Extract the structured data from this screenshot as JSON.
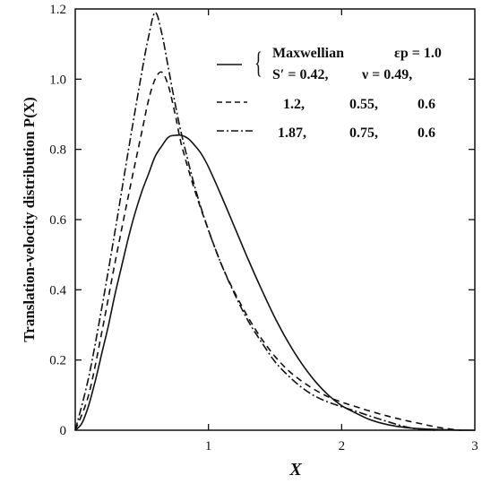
{
  "chart_data": {
    "type": "line",
    "title": "",
    "xlabel": "X",
    "ylabel": "Translation-velocity distribution  P(X)",
    "xlim": [
      0,
      3
    ],
    "ylim": [
      0,
      1.2
    ],
    "x_ticks": [
      "1",
      "2",
      "3"
    ],
    "y_ticks": [
      "0",
      "0.2",
      "0.4",
      "0.6",
      "0.8",
      "1.0",
      "1.2"
    ],
    "grid": false,
    "legend_position": "top-right",
    "legend": {
      "maxwellian": "Maxwellian",
      "epsilon_p": "εp = 1.0",
      "row1": [
        "S′ = 0.42,",
        "ν = 0.49,",
        ""
      ],
      "row2": [
        "1.2,",
        "0.55,",
        "0.6"
      ],
      "row3": [
        "1.87,",
        "0.75,",
        "0.6"
      ]
    },
    "series": [
      {
        "style": "solid",
        "points": [
          [
            0,
            0
          ],
          [
            0.05,
            0.02
          ],
          [
            0.1,
            0.07
          ],
          [
            0.15,
            0.14
          ],
          [
            0.2,
            0.22
          ],
          [
            0.25,
            0.3
          ],
          [
            0.3,
            0.39
          ],
          [
            0.35,
            0.47
          ],
          [
            0.4,
            0.55
          ],
          [
            0.45,
            0.62
          ],
          [
            0.5,
            0.68
          ],
          [
            0.55,
            0.73
          ],
          [
            0.6,
            0.78
          ],
          [
            0.65,
            0.81
          ],
          [
            0.7,
            0.835
          ],
          [
            0.75,
            0.84
          ],
          [
            0.8,
            0.84
          ],
          [
            0.85,
            0.83
          ],
          [
            0.9,
            0.81
          ],
          [
            0.95,
            0.785
          ],
          [
            1.0,
            0.75
          ],
          [
            1.1,
            0.665
          ],
          [
            1.2,
            0.575
          ],
          [
            1.3,
            0.485
          ],
          [
            1.4,
            0.4
          ],
          [
            1.5,
            0.32
          ],
          [
            1.6,
            0.25
          ],
          [
            1.7,
            0.19
          ],
          [
            1.8,
            0.14
          ],
          [
            1.9,
            0.1
          ],
          [
            2.0,
            0.07
          ],
          [
            2.1,
            0.05
          ],
          [
            2.2,
            0.032
          ],
          [
            2.3,
            0.02
          ],
          [
            2.4,
            0.012
          ],
          [
            2.5,
            0.007
          ],
          [
            2.6,
            0.004
          ],
          [
            2.8,
            0.001
          ],
          [
            3.0,
            0.0
          ]
        ]
      },
      {
        "style": "dashed",
        "points": [
          [
            0,
            0
          ],
          [
            0.1,
            0.1
          ],
          [
            0.2,
            0.28
          ],
          [
            0.3,
            0.48
          ],
          [
            0.4,
            0.67
          ],
          [
            0.5,
            0.85
          ],
          [
            0.55,
            0.94
          ],
          [
            0.6,
            1.0
          ],
          [
            0.65,
            1.02
          ],
          [
            0.7,
            0.98
          ],
          [
            0.75,
            0.9
          ],
          [
            0.8,
            0.81
          ],
          [
            0.9,
            0.68
          ],
          [
            1.0,
            0.57
          ],
          [
            1.1,
            0.47
          ],
          [
            1.2,
            0.39
          ],
          [
            1.3,
            0.32
          ],
          [
            1.4,
            0.26
          ],
          [
            1.5,
            0.21
          ],
          [
            1.6,
            0.17
          ],
          [
            1.7,
            0.14
          ],
          [
            1.8,
            0.115
          ],
          [
            1.9,
            0.095
          ],
          [
            2.0,
            0.08
          ],
          [
            2.1,
            0.068
          ],
          [
            2.2,
            0.056
          ],
          [
            2.3,
            0.045
          ],
          [
            2.4,
            0.035
          ],
          [
            2.5,
            0.026
          ],
          [
            2.6,
            0.018
          ],
          [
            2.7,
            0.01
          ],
          [
            2.8,
            0.004
          ],
          [
            2.9,
            0.0
          ]
        ]
      },
      {
        "style": "dashdot",
        "points": [
          [
            0,
            0
          ],
          [
            0.1,
            0.15
          ],
          [
            0.2,
            0.35
          ],
          [
            0.3,
            0.57
          ],
          [
            0.4,
            0.8
          ],
          [
            0.5,
            1.02
          ],
          [
            0.55,
            1.12
          ],
          [
            0.6,
            1.19
          ],
          [
            0.65,
            1.13
          ],
          [
            0.7,
            1.03
          ],
          [
            0.75,
            0.93
          ],
          [
            0.8,
            0.84
          ],
          [
            0.9,
            0.69
          ],
          [
            1.0,
            0.57
          ],
          [
            1.1,
            0.47
          ],
          [
            1.2,
            0.385
          ],
          [
            1.3,
            0.31
          ],
          [
            1.4,
            0.25
          ],
          [
            1.5,
            0.195
          ],
          [
            1.6,
            0.155
          ],
          [
            1.7,
            0.122
          ],
          [
            1.8,
            0.097
          ],
          [
            1.9,
            0.08
          ],
          [
            2.0,
            0.067
          ],
          [
            2.1,
            0.055
          ],
          [
            2.2,
            0.042
          ],
          [
            2.3,
            0.03
          ],
          [
            2.4,
            0.018
          ],
          [
            2.5,
            0.008
          ],
          [
            2.6,
            0.002
          ],
          [
            2.7,
            0.0
          ]
        ]
      }
    ]
  }
}
